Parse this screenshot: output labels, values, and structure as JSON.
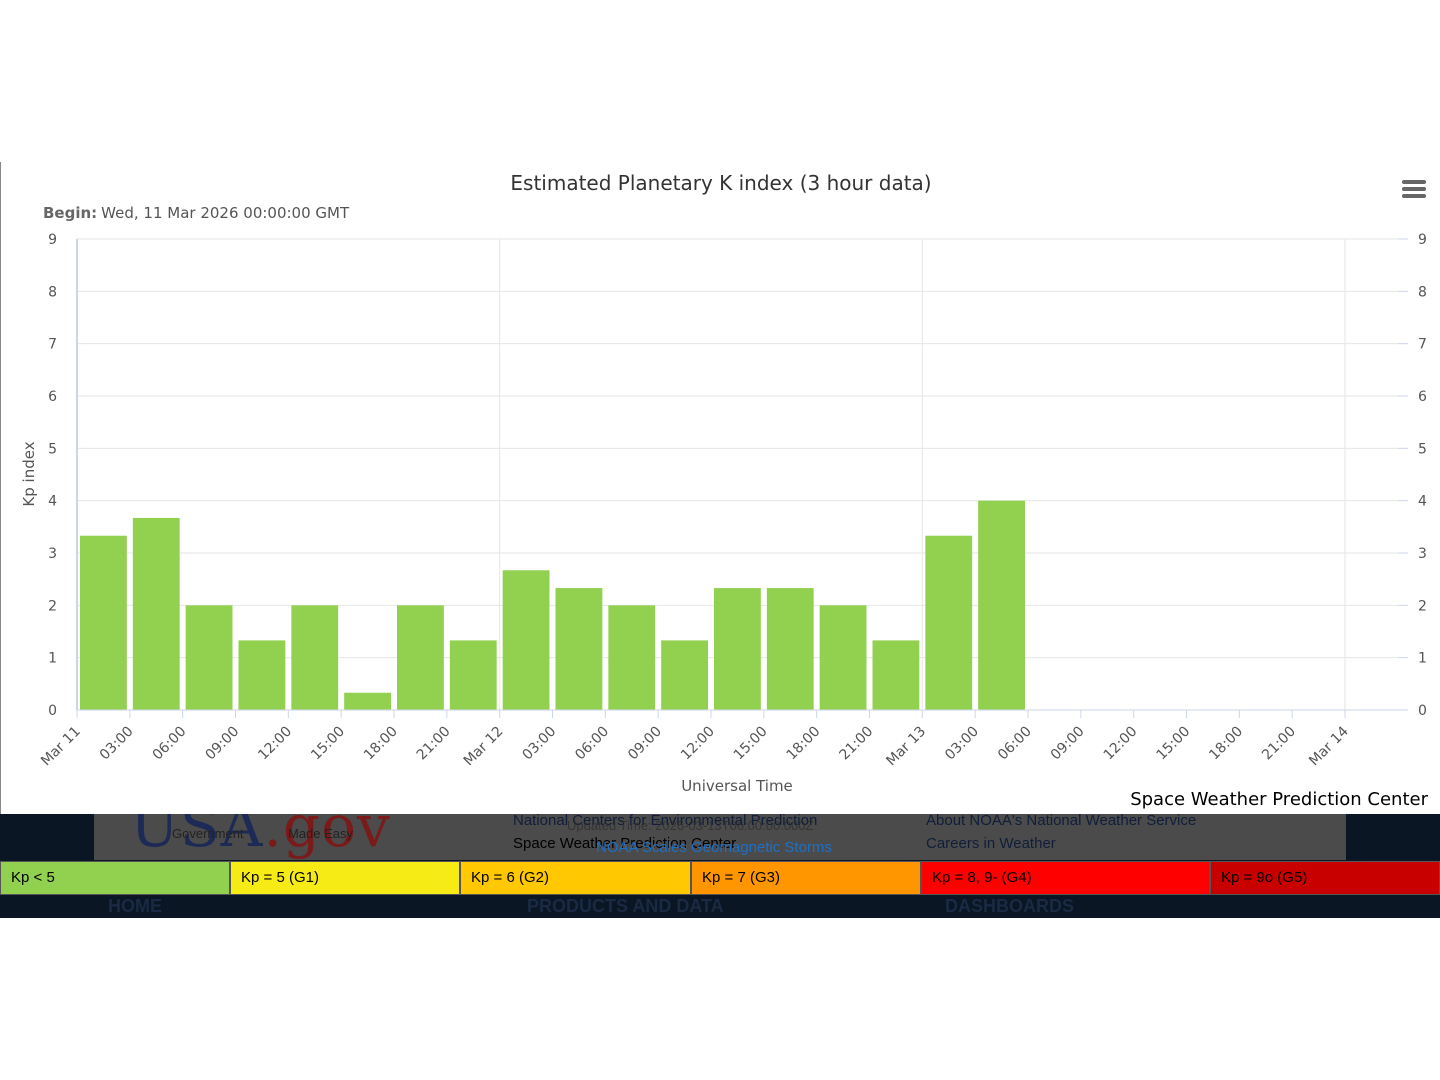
{
  "chart_data": {
    "type": "bar",
    "title": "Estimated Planetary K index (3 hour data)",
    "subtitle_label": "Begin:",
    "subtitle_value": "Wed, 11 Mar 2026 00:00:00 GMT",
    "ylabel": "Kp index",
    "xlabel": "Universal Time",
    "ylim": [
      0,
      9
    ],
    "y_ticks": [
      "0",
      "1",
      "2",
      "3",
      "4",
      "5",
      "6",
      "7",
      "8",
      "9"
    ],
    "x_tick_labels": [
      "Mar 11",
      "03:00",
      "06:00",
      "09:00",
      "12:00",
      "15:00",
      "18:00",
      "21:00",
      "Mar 12",
      "03:00",
      "06:00",
      "09:00",
      "12:00",
      "15:00",
      "18:00",
      "21:00",
      "Mar 13",
      "03:00",
      "06:00",
      "09:00",
      "12:00",
      "15:00",
      "18:00",
      "21:00",
      "Mar 14"
    ],
    "categories": [
      "Mar 11 00:00",
      "Mar 11 03:00",
      "Mar 11 06:00",
      "Mar 11 09:00",
      "Mar 11 12:00",
      "Mar 11 15:00",
      "Mar 11 18:00",
      "Mar 11 21:00",
      "Mar 12 00:00",
      "Mar 12 03:00",
      "Mar 12 06:00",
      "Mar 12 09:00",
      "Mar 12 12:00",
      "Mar 12 15:00",
      "Mar 12 18:00",
      "Mar 12 21:00",
      "Mar 13 00:00",
      "Mar 13 03:00"
    ],
    "values": [
      3.33,
      3.67,
      2.0,
      1.33,
      2.0,
      0.33,
      2.0,
      1.33,
      2.67,
      2.33,
      2.0,
      1.33,
      2.33,
      2.33,
      2.0,
      1.33,
      3.33,
      4.0
    ],
    "bar_color": "#92d050",
    "grid": true,
    "legend": "none"
  },
  "credit": "Space Weather Prediction Center",
  "legend_scale": [
    {
      "label": "Kp < 5",
      "color": "#92d050"
    },
    {
      "label": "Kp = 5 (G1)",
      "color": "#f6eb14"
    },
    {
      "label": "Kp = 6 (G2)",
      "color": "#ffc800"
    },
    {
      "label": "Kp = 7 (G3)",
      "color": "#ff9600"
    },
    {
      "label": "Kp = 8, 9- (G4)",
      "color": "#ff0000"
    },
    {
      "label": "Kp = 9o (G5)",
      "color": "#c80000"
    }
  ],
  "footer": {
    "logo_usa": "USA",
    "logo_gov": ".gov",
    "tag1": "Government",
    "tag2": "Made Easy",
    "ncep": "National Centers for Environmental Prediction",
    "swpc": "Space Weather Prediction Center",
    "updated": "Updated Time: 2026-03-13T06:00:00.000Z",
    "noaa_scales": "NOAA Scales Geomagnetic Storms",
    "about": "About NOAA's National Weather Service",
    "careers": "Careers in Weather",
    "nav_home": "HOME",
    "nav_products": "PRODUCTS AND DATA",
    "nav_dashboards": "DASHBOARDS"
  }
}
